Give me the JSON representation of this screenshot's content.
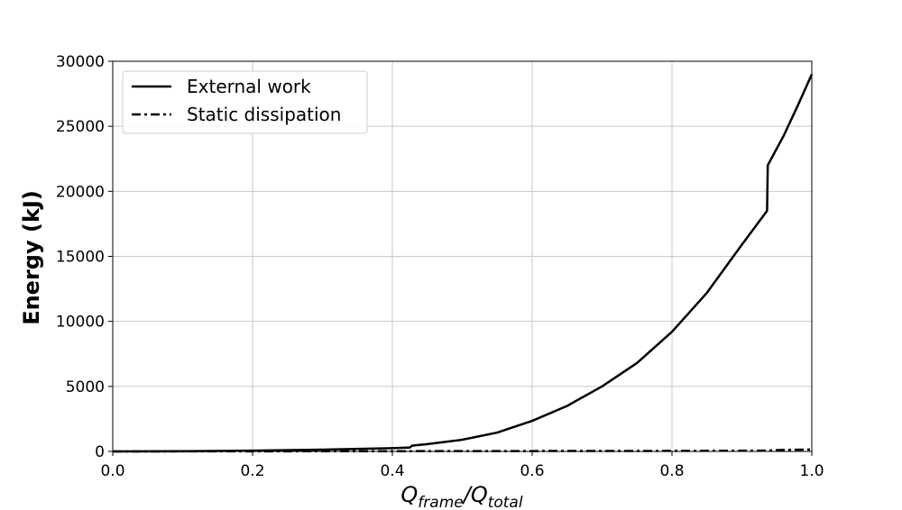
{
  "chart_data": {
    "type": "line",
    "title": "",
    "xlabel": {
      "base1": "Q",
      "sub1": "frame",
      "slash": "/",
      "base2": "Q",
      "sub2": "total"
    },
    "ylabel": "Energy (kJ)",
    "xlim": [
      0.0,
      1.0
    ],
    "ylim": [
      0,
      30000
    ],
    "xticks": [
      0.0,
      0.2,
      0.4,
      0.6,
      0.8,
      1.0
    ],
    "xtick_labels": [
      "0.0",
      "0.2",
      "0.4",
      "0.6",
      "0.8",
      "1.0"
    ],
    "yticks": [
      0,
      5000,
      10000,
      15000,
      20000,
      25000,
      30000
    ],
    "ytick_labels": [
      "0",
      "5000",
      "10000",
      "15000",
      "20000",
      "25000",
      "30000"
    ],
    "grid": true,
    "legend_position": "top-left",
    "series": [
      {
        "name": "External work",
        "style": "solid",
        "color": "#000000",
        "x": [
          0.0,
          0.1,
          0.2,
          0.3,
          0.4,
          0.425,
          0.428,
          0.45,
          0.5,
          0.55,
          0.6,
          0.65,
          0.7,
          0.75,
          0.8,
          0.85,
          0.9,
          0.936,
          0.937,
          0.96,
          0.98,
          1.0
        ],
        "y": [
          0,
          15,
          60,
          140,
          250,
          300,
          440,
          560,
          900,
          1450,
          2350,
          3500,
          5000,
          6800,
          9200,
          12200,
          15900,
          18500,
          22000,
          24300,
          26600,
          29000
        ]
      },
      {
        "name": "Static dissipation",
        "style": "dashdot",
        "color": "#000000",
        "x": [
          0.0,
          0.2,
          0.4,
          0.6,
          0.8,
          0.93,
          0.96,
          1.0
        ],
        "y": [
          0,
          10,
          20,
          30,
          40,
          60,
          120,
          150
        ]
      }
    ]
  }
}
